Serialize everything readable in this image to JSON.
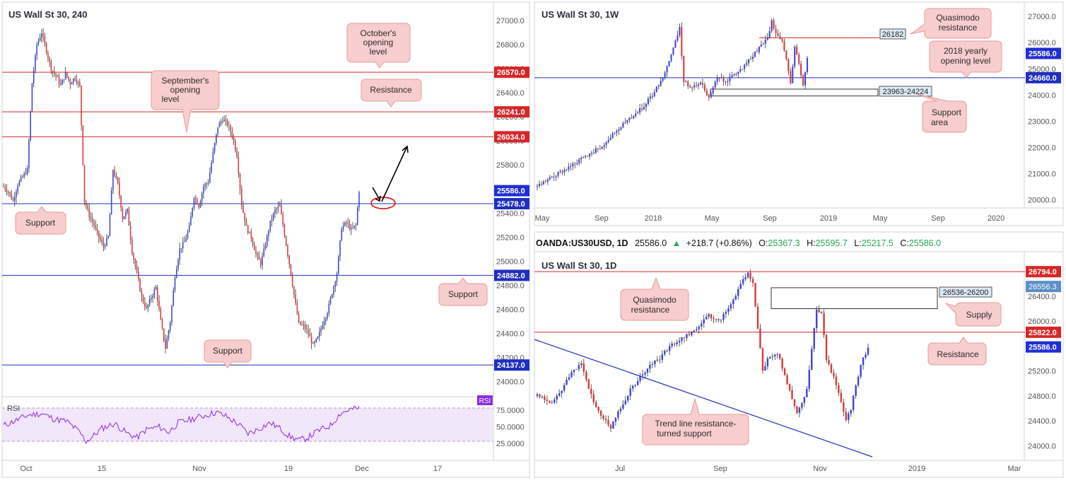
{
  "chart_data": [
    {
      "type": "candlestick",
      "title": "US Wall St 30, 240",
      "x_ticks": [
        "Oct",
        "15",
        "Nov",
        "19",
        "Dec",
        "17"
      ],
      "y_ticks": [
        "27000.0",
        "26800.0",
        "26600.0",
        "26400.0",
        "26200.0",
        "26000.0",
        "25800.0",
        "25600.0",
        "25400.0",
        "25200.0",
        "25000.0",
        "24800.0",
        "24600.0",
        "24400.0",
        "24200.0",
        "24000.0"
      ],
      "ylim": [
        23950,
        27100
      ],
      "levels": [
        {
          "value": 26570,
          "label": "26570.0",
          "color": "#d62728"
        },
        {
          "value": 26241,
          "label": "26241.0",
          "color": "#d62728"
        },
        {
          "value": 26034,
          "label": "26034.0",
          "color": "#d62728"
        },
        {
          "value": 25478,
          "label": "25478.0",
          "color": "#1f2fbf"
        },
        {
          "value": 24882,
          "label": "24882.0",
          "color": "#1f2fbf"
        },
        {
          "value": 24137,
          "label": "24137.0",
          "color": "#1f2fbf"
        }
      ],
      "last_price": {
        "value": 25586,
        "label": "25586.0"
      },
      "annotations": [
        {
          "lines": [
            "October's",
            "opening",
            "level"
          ]
        },
        {
          "lines": [
            "September's",
            "opening",
            "level"
          ]
        },
        {
          "lines": [
            "Resistance"
          ]
        },
        {
          "lines": [
            "Support"
          ]
        },
        {
          "lines": [
            "Support"
          ]
        },
        {
          "lines": [
            "Support"
          ]
        }
      ],
      "series_path": [
        [
          0,
          25620
        ],
        [
          3,
          25580
        ],
        [
          6,
          25500
        ],
        [
          9,
          25640
        ],
        [
          12,
          25700
        ],
        [
          15,
          25760
        ],
        [
          18,
          26480
        ],
        [
          21,
          26800
        ],
        [
          24,
          26900
        ],
        [
          27,
          26750
        ],
        [
          30,
          26600
        ],
        [
          33,
          26540
        ],
        [
          36,
          26460
        ],
        [
          39,
          26560
        ],
        [
          42,
          26480
        ],
        [
          45,
          26530
        ],
        [
          48,
          26450
        ],
        [
          51,
          25500
        ],
        [
          54,
          25380
        ],
        [
          57,
          25300
        ],
        [
          60,
          25200
        ],
        [
          63,
          25120
        ],
        [
          66,
          25200
        ],
        [
          69,
          25760
        ],
        [
          72,
          25640
        ],
        [
          75,
          25360
        ],
        [
          78,
          25420
        ],
        [
          81,
          25080
        ],
        [
          84,
          24900
        ],
        [
          87,
          24700
        ],
        [
          90,
          24600
        ],
        [
          93,
          24700
        ],
        [
          96,
          24780
        ],
        [
          99,
          24500
        ],
        [
          102,
          24280
        ],
        [
          105,
          24500
        ],
        [
          108,
          24880
        ],
        [
          111,
          25100
        ],
        [
          114,
          25160
        ],
        [
          117,
          25280
        ],
        [
          120,
          25540
        ],
        [
          123,
          25460
        ],
        [
          126,
          25620
        ],
        [
          129,
          25660
        ],
        [
          132,
          25900
        ],
        [
          135,
          26120
        ],
        [
          138,
          26180
        ],
        [
          141,
          26140
        ],
        [
          144,
          26050
        ],
        [
          147,
          25880
        ],
        [
          150,
          25470
        ],
        [
          153,
          25280
        ],
        [
          156,
          25200
        ],
        [
          159,
          25060
        ],
        [
          162,
          24980
        ],
        [
          165,
          25140
        ],
        [
          168,
          25320
        ],
        [
          171,
          25420
        ],
        [
          174,
          25460
        ],
        [
          177,
          25220
        ],
        [
          180,
          24980
        ],
        [
          183,
          24720
        ],
        [
          186,
          24480
        ],
        [
          189,
          24460
        ],
        [
          192,
          24400
        ],
        [
          195,
          24300
        ],
        [
          198,
          24360
        ],
        [
          201,
          24480
        ],
        [
          204,
          24580
        ],
        [
          207,
          24740
        ],
        [
          210,
          24900
        ],
        [
          213,
          25280
        ],
        [
          216,
          25320
        ],
        [
          219,
          25260
        ],
        [
          222,
          25300
        ],
        [
          224,
          25586
        ]
      ],
      "rsi": {
        "label": "RSI",
        "y_ticks": [
          "75.0000",
          "50.0000",
          "25.0000"
        ],
        "last": "RSI",
        "series_path": [
          [
            0,
            52
          ],
          [
            8,
            60
          ],
          [
            16,
            68
          ],
          [
            24,
            70
          ],
          [
            32,
            62
          ],
          [
            40,
            58
          ],
          [
            48,
            42
          ],
          [
            52,
            28
          ],
          [
            56,
            35
          ],
          [
            62,
            48
          ],
          [
            70,
            55
          ],
          [
            78,
            40
          ],
          [
            84,
            34
          ],
          [
            90,
            46
          ],
          [
            98,
            50
          ],
          [
            104,
            42
          ],
          [
            110,
            56
          ],
          [
            116,
            60
          ],
          [
            122,
            64
          ],
          [
            128,
            68
          ],
          [
            134,
            72
          ],
          [
            140,
            66
          ],
          [
            148,
            54
          ],
          [
            154,
            40
          ],
          [
            160,
            46
          ],
          [
            168,
            56
          ],
          [
            174,
            48
          ],
          [
            180,
            36
          ],
          [
            186,
            30
          ],
          [
            192,
            34
          ],
          [
            198,
            44
          ],
          [
            206,
            52
          ],
          [
            212,
            70
          ],
          [
            218,
            76
          ],
          [
            224,
            78
          ]
        ]
      }
    },
    {
      "type": "candlestick",
      "title": "US Wall St 30, 1W",
      "x_ticks": [
        "May",
        "Sep",
        "2018",
        "May",
        "Sep",
        "2019",
        "May",
        "Sep",
        "2020"
      ],
      "y_ticks": [
        "27000.0",
        "26000.0",
        "25000.0",
        "24000.0",
        "23000.0",
        "22000.0",
        "21000.0",
        "20000.0"
      ],
      "ylim": [
        19800,
        27300
      ],
      "levels": [
        {
          "value": 24660,
          "label": "24660.0",
          "color": "#1f2fbf"
        },
        {
          "value": 26182,
          "label": "26182",
          "color": "#d62728"
        }
      ],
      "zone": {
        "label": "23963-24224",
        "low": 23963,
        "high": 24224
      },
      "last_price": {
        "value": 25586,
        "label": "25586.0"
      },
      "annotations": [
        {
          "lines": [
            "Quasimodo",
            "resistance"
          ]
        },
        {
          "lines": [
            "2018 yearly",
            "opening level"
          ]
        },
        {
          "lines": [
            "Support",
            "area"
          ]
        }
      ]
    },
    {
      "type": "candlestick",
      "title": "US Wall St 30, 1D",
      "header": {
        "symbol": "OANDA:US30USD, 1D",
        "price": "25586.0",
        "change": "+218.7 (+0.86%)",
        "open_label": "O:",
        "open": "25367.3",
        "high_label": "H:",
        "high": "25595.7",
        "low_label": "L:",
        "low": "25217.5",
        "close_label": "C:",
        "close": "25586.0"
      },
      "x_ticks": [
        "Jul",
        "Sep",
        "Nov",
        "2019",
        "Mar"
      ],
      "y_ticks": [
        "26800.0",
        "26400.0",
        "26000.0",
        "25600.0",
        "25200.0",
        "24800.0",
        "24400.0",
        "24000.0"
      ],
      "ylim": [
        23800,
        27000
      ],
      "levels": [
        {
          "value": 26794,
          "label": "26794.0",
          "color": "#d62728"
        },
        {
          "value": 25822,
          "label": "25822.0",
          "color": "#d62728"
        }
      ],
      "zone": {
        "label": "26536-26200",
        "low": 26200,
        "high": 26536
      },
      "alt_price": {
        "value": 26556.3,
        "label": "26556.3"
      },
      "last_price": {
        "value": 25586,
        "label": "25586.0"
      },
      "annotations": [
        {
          "lines": [
            "Quasimodo",
            "resistance"
          ]
        },
        {
          "lines": [
            "Supply"
          ]
        },
        {
          "lines": [
            "Resistance"
          ]
        },
        {
          "lines": [
            "Trend line resistance-",
            "turned support"
          ]
        }
      ]
    }
  ]
}
